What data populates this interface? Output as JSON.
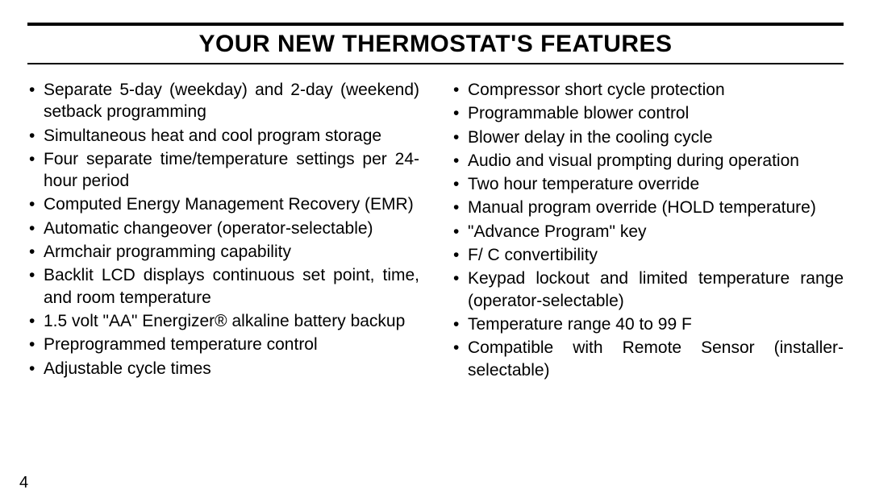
{
  "title": "Your New Thermostat's Features",
  "page_number": "4",
  "columns": {
    "left": [
      "Separate 5-day (weekday) and 2-day (week­end) setback programming",
      "Simultaneous heat and cool program stor­age",
      "Four separate time/temperature settings per 24-hour period",
      "Computed Energy Management Recovery (EMR)",
      "Automatic changeover (operator-selectable)",
      "Armchair programming capability",
      "Backlit LCD displays continuous set point, time, and room temperature",
      "1.5 volt \"AA\" Energizer® alkaline battery backup",
      "Preprogrammed temperature control",
      "Adjustable cycle times"
    ],
    "right": [
      "Compressor short cycle protection",
      "Programmable blower control",
      "Blower delay in the cooling cycle",
      "Audio and visual prompting during opera­tion",
      "Two hour temperature override",
      "Manual program override (HOLD tempera­ture)",
      "\"Advance Program\" key",
      " F/ C convertibility",
      "Keypad lockout and limited temperature range (operator-selectable)",
      "Temperature range 40  to 99 F",
      "Compatible with Remote Sensor (installer-selectable)"
    ]
  }
}
